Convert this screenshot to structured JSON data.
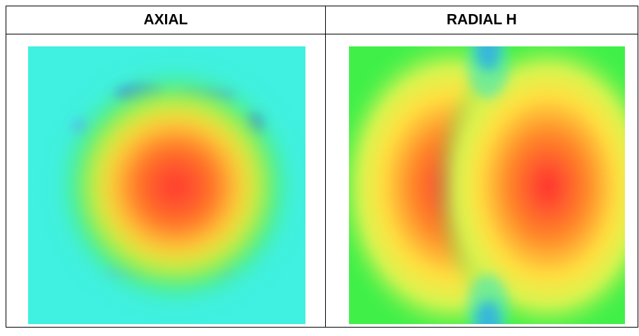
{
  "table": {
    "headers": [
      "AXIAL",
      "RADIAL H"
    ]
  }
}
